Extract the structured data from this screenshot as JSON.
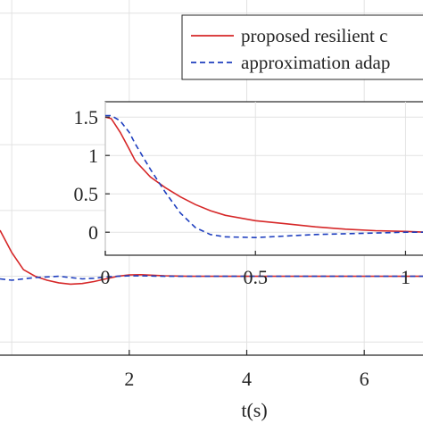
{
  "chart_data": [
    {
      "type": "line",
      "role": "main",
      "xlabel": "t(s)",
      "ylabel": "",
      "xlim": [
        -0.2,
        7.0
      ],
      "ylim": [
        -0.6,
        2.1
      ],
      "x_ticks": [
        2,
        4,
        6
      ],
      "x_tick_labels": [
        "2",
        "4",
        "6"
      ],
      "grid": true,
      "legend_placement": "top-right",
      "series": [
        {
          "name": "proposed resilient c",
          "color": "#d62728",
          "dash": "solid",
          "x": [
            -0.2,
            0.0,
            0.2,
            0.4,
            0.6,
            0.8,
            1.0,
            1.2,
            1.4,
            1.6,
            1.8,
            2.0,
            2.2,
            2.4,
            2.6,
            2.8,
            3.0,
            3.5,
            4.0,
            5.0,
            6.0,
            7.0
          ],
          "y": [
            0.35,
            0.18,
            0.05,
            0.0,
            -0.03,
            -0.05,
            -0.06,
            -0.055,
            -0.04,
            -0.02,
            0.0,
            0.01,
            0.012,
            0.008,
            0.004,
            0.002,
            0.0,
            0.0,
            0.0,
            0.0,
            0.0,
            0.0
          ]
        },
        {
          "name": "approximation adap",
          "color": "#1f3fbf",
          "dash": "dashed",
          "x": [
            -0.2,
            0.0,
            0.2,
            0.4,
            0.6,
            0.8,
            1.0,
            1.2,
            1.4,
            1.6,
            1.8,
            2.0,
            2.2,
            2.4,
            2.6,
            2.8,
            3.0,
            3.5,
            4.0,
            5.0,
            6.0,
            7.0
          ],
          "y": [
            -0.02,
            -0.03,
            -0.02,
            -0.01,
            -0.005,
            0.0,
            -0.01,
            -0.02,
            -0.015,
            -0.005,
            0.0,
            0.003,
            0.004,
            0.002,
            0.0,
            0.0,
            0.0,
            0.0,
            0.0,
            0.0,
            0.0,
            0.0
          ]
        }
      ]
    },
    {
      "type": "line",
      "role": "inset",
      "xlim": [
        0,
        1.07
      ],
      "ylim": [
        -0.3,
        1.7
      ],
      "x_ticks": [
        0,
        0.5,
        1
      ],
      "x_tick_labels": [
        "0",
        "0.5",
        "1"
      ],
      "y_ticks": [
        0,
        0.5,
        1,
        1.5
      ],
      "y_tick_labels": [
        "0",
        "0.5",
        "1",
        "1.5"
      ],
      "grid": true,
      "series": [
        {
          "name": "proposed resilient c",
          "color": "#d62728",
          "dash": "solid",
          "x": [
            0.0,
            0.02,
            0.05,
            0.08,
            0.1,
            0.15,
            0.2,
            0.25,
            0.3,
            0.35,
            0.4,
            0.5,
            0.6,
            0.7,
            0.8,
            0.9,
            1.0,
            1.07
          ],
          "y": [
            1.5,
            1.48,
            1.3,
            1.08,
            0.93,
            0.72,
            0.58,
            0.46,
            0.36,
            0.28,
            0.22,
            0.15,
            0.11,
            0.07,
            0.04,
            0.02,
            0.01,
            0.0
          ]
        },
        {
          "name": "approximation adap",
          "color": "#1f3fbf",
          "dash": "dashed",
          "x": [
            0.0,
            0.02,
            0.05,
            0.08,
            0.1,
            0.15,
            0.2,
            0.25,
            0.3,
            0.35,
            0.4,
            0.5,
            0.6,
            0.7,
            0.8,
            0.9,
            1.0,
            1.07
          ],
          "y": [
            1.52,
            1.52,
            1.45,
            1.3,
            1.15,
            0.82,
            0.52,
            0.25,
            0.06,
            -0.03,
            -0.06,
            -0.07,
            -0.05,
            -0.03,
            -0.02,
            -0.01,
            0.0,
            0.0
          ]
        }
      ]
    }
  ]
}
